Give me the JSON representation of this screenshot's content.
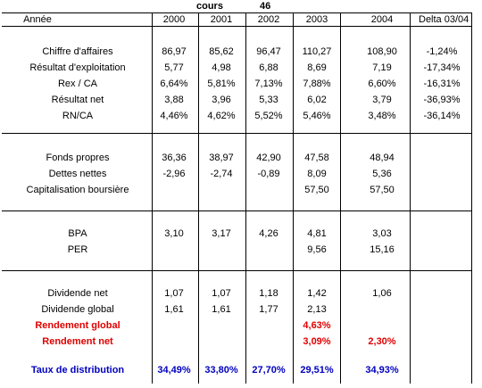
{
  "top": {
    "cours_label": "cours",
    "cours_value": "46"
  },
  "header": {
    "label": "Année",
    "cols": [
      "2000",
      "2001",
      "2002",
      "2003",
      "2004",
      "Delta 03/04"
    ]
  },
  "sections": [
    {
      "rows": [
        {
          "label": "Chiffre d'affaires",
          "values": [
            "86,97",
            "85,62",
            "96,47",
            "110,27",
            "108,90",
            "-1,24%"
          ]
        },
        {
          "label": "Résultat d'exploitation",
          "values": [
            "5,77",
            "4,98",
            "6,88",
            "8,69",
            "7,19",
            "-17,34%"
          ]
        },
        {
          "label": "Rex / CA",
          "values": [
            "6,64%",
            "5,81%",
            "7,13%",
            "7,88%",
            "6,60%",
            "-16,31%"
          ]
        },
        {
          "label": "Résultat net",
          "values": [
            "3,88",
            "3,96",
            "5,33",
            "6,02",
            "3,79",
            "-36,93%"
          ]
        },
        {
          "label": "RN/CA",
          "values": [
            "4,46%",
            "4,62%",
            "5,52%",
            "5,46%",
            "3,48%",
            "-36,14%"
          ]
        }
      ]
    },
    {
      "rows": [
        {
          "label": "Fonds propres",
          "values": [
            "36,36",
            "38,97",
            "42,90",
            "47,58",
            "48,94",
            ""
          ]
        },
        {
          "label": "Dettes nettes",
          "values": [
            "-2,96",
            "-2,74",
            "-0,89",
            "8,09",
            "5,36",
            ""
          ]
        },
        {
          "label": "Capitalisation boursière",
          "values": [
            "",
            "",
            "",
            "57,50",
            "57,50",
            ""
          ]
        }
      ]
    },
    {
      "rows": [
        {
          "label": "BPA",
          "values": [
            "3,10",
            "3,17",
            "4,26",
            "4,81",
            "3,03",
            ""
          ]
        },
        {
          "label": "PER",
          "values": [
            "",
            "",
            "",
            "9,56",
            "15,16",
            ""
          ]
        }
      ]
    },
    {
      "rows": [
        {
          "label": "Dividende net",
          "values": [
            "1,07",
            "1,07",
            "1,18",
            "1,42",
            "1,06",
            ""
          ]
        },
        {
          "label": "Dividende global",
          "values": [
            "1,61",
            "1,61",
            "1,77",
            "2,13",
            "",
            ""
          ]
        },
        {
          "label": "Rendement global",
          "values": [
            "",
            "",
            "",
            "4,63%",
            "",
            ""
          ],
          "style": "red"
        },
        {
          "label": "Rendement net",
          "values": [
            "",
            "",
            "",
            "3,09%",
            "2,30%",
            ""
          ],
          "style": "red"
        },
        {
          "label": "Taux de distribution",
          "values": [
            "34,49%",
            "33,80%",
            "27,70%",
            "29,51%",
            "34,93%",
            ""
          ],
          "style": "blue"
        }
      ]
    }
  ],
  "colors": {
    "red": "#e00000",
    "blue": "#0000c0"
  }
}
